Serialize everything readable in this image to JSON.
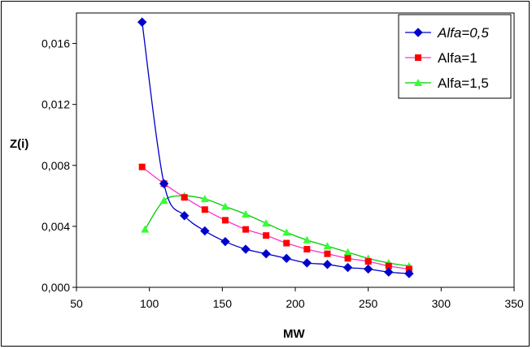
{
  "chart_data": {
    "type": "line",
    "title": "",
    "xlabel": "MW",
    "ylabel": "Z(i)",
    "xlim": [
      50,
      350
    ],
    "ylim": [
      0,
      0.018
    ],
    "x_ticks": [
      "50",
      "100",
      "150",
      "200",
      "250",
      "300",
      "350"
    ],
    "y_ticks": [
      "0,000",
      "0,004",
      "0,008",
      "0,012",
      "0,016"
    ],
    "grid": false,
    "legend_position": "top-right",
    "series": [
      {
        "name": "Alfa=0,5",
        "italic": true,
        "color": "#0000cc",
        "marker": "diamond",
        "x": [
          95,
          110,
          124,
          138,
          152,
          166,
          180,
          194,
          208,
          222,
          236,
          250,
          264,
          278
        ],
        "y": [
          0.0174,
          0.0068,
          0.0047,
          0.0037,
          0.003,
          0.0025,
          0.0022,
          0.0019,
          0.0016,
          0.0015,
          0.0013,
          0.0012,
          0.001,
          0.0009
        ]
      },
      {
        "name": "Alfa=1",
        "italic": false,
        "color": "#ff33cc",
        "marker_color": "#ff0000",
        "marker": "square",
        "x": [
          95,
          110,
          124,
          138,
          152,
          166,
          180,
          194,
          208,
          222,
          236,
          250,
          264,
          278
        ],
        "y": [
          0.0079,
          0.0068,
          0.0059,
          0.0051,
          0.0044,
          0.0038,
          0.0034,
          0.0029,
          0.0025,
          0.0022,
          0.0019,
          0.0017,
          0.0014,
          0.0012
        ]
      },
      {
        "name": "Alfa=1,5",
        "italic": false,
        "color": "#00cc00",
        "marker_color": "#33ff33",
        "marker": "triangle",
        "x": [
          97,
          110,
          124,
          138,
          152,
          166,
          180,
          194,
          208,
          222,
          236,
          250,
          264,
          278
        ],
        "y": [
          0.0038,
          0.0057,
          0.006,
          0.0058,
          0.0053,
          0.0048,
          0.0042,
          0.0036,
          0.0031,
          0.0027,
          0.0023,
          0.0019,
          0.0016,
          0.0014
        ]
      }
    ]
  }
}
